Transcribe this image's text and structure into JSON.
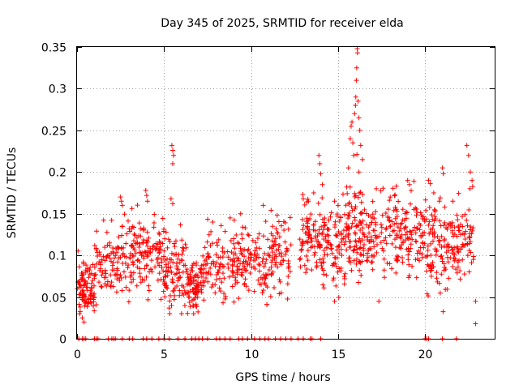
{
  "chart_data": {
    "type": "scatter",
    "title": "Day 345 of 2025, SRMTID for receiver elda",
    "xlabel": "GPS time / hours",
    "ylabel": "SRMTID / TECUs",
    "xlim": [
      0,
      24
    ],
    "ylim": [
      0,
      0.35
    ],
    "xticks": [
      0,
      5,
      10,
      15,
      20
    ],
    "xtick_labels": [
      "0",
      "5",
      "10",
      "15",
      "20"
    ],
    "yticks": [
      0,
      0.05,
      0.1,
      0.15,
      0.2,
      0.25,
      0.3,
      0.35
    ],
    "ytick_labels": [
      "0",
      "0.05",
      "0.1",
      "0.15",
      "0.2",
      "0.25",
      "0.3",
      "0.35"
    ],
    "grid": true,
    "marker": "+",
    "color": "#ff0000",
    "series": [
      {
        "name": "SRMTID",
        "segments": [
          {
            "start": 0.0,
            "end": 1.0,
            "base": 0.06,
            "spread": 0.015,
            "n": 90
          },
          {
            "start": 1.0,
            "end": 2.3,
            "base": 0.09,
            "spread": 0.02,
            "n": 70
          },
          {
            "start": 2.3,
            "end": 3.6,
            "base": 0.1,
            "spread": 0.022,
            "n": 80
          },
          {
            "start": 3.6,
            "end": 5.0,
            "base": 0.1,
            "spread": 0.025,
            "n": 90
          },
          {
            "start": 5.0,
            "end": 6.3,
            "base": 0.08,
            "spread": 0.022,
            "n": 90
          },
          {
            "start": 6.3,
            "end": 7.2,
            "base": 0.065,
            "spread": 0.015,
            "n": 80
          },
          {
            "start": 7.2,
            "end": 9.0,
            "base": 0.09,
            "spread": 0.02,
            "n": 90
          },
          {
            "start": 9.0,
            "end": 10.5,
            "base": 0.095,
            "spread": 0.022,
            "n": 90
          },
          {
            "start": 10.5,
            "end": 12.3,
            "base": 0.095,
            "spread": 0.025,
            "n": 100
          },
          {
            "start": 12.8,
            "end": 14.0,
            "base": 0.12,
            "spread": 0.022,
            "n": 80
          },
          {
            "start": 14.0,
            "end": 15.5,
            "base": 0.11,
            "spread": 0.025,
            "n": 100
          },
          {
            "start": 15.5,
            "end": 16.5,
            "base": 0.13,
            "spread": 0.03,
            "n": 90
          },
          {
            "start": 16.5,
            "end": 18.5,
            "base": 0.12,
            "spread": 0.025,
            "n": 110
          },
          {
            "start": 18.5,
            "end": 20.0,
            "base": 0.12,
            "spread": 0.022,
            "n": 90
          },
          {
            "start": 20.0,
            "end": 21.5,
            "base": 0.11,
            "spread": 0.03,
            "n": 100
          },
          {
            "start": 21.5,
            "end": 22.8,
            "base": 0.12,
            "spread": 0.025,
            "n": 80
          }
        ],
        "spikes": [
          [
            0.5,
            0.08
          ],
          [
            0.9,
            0.07
          ],
          [
            2.5,
            0.17
          ],
          [
            2.55,
            0.165
          ],
          [
            2.6,
            0.16
          ],
          [
            2.6,
            0.135
          ],
          [
            3.95,
            0.178
          ],
          [
            4.0,
            0.172
          ],
          [
            4.05,
            0.165
          ],
          [
            5.45,
            0.232
          ],
          [
            5.5,
            0.226
          ],
          [
            5.55,
            0.22
          ],
          [
            5.5,
            0.21
          ],
          [
            5.4,
            0.168
          ],
          [
            5.5,
            0.162
          ],
          [
            7.8,
            0.14
          ],
          [
            8.8,
            0.145
          ],
          [
            9.4,
            0.15
          ],
          [
            10.7,
            0.16
          ],
          [
            11.5,
            0.148
          ],
          [
            13.0,
            0.168
          ],
          [
            13.3,
            0.165
          ],
          [
            13.6,
            0.175
          ],
          [
            13.9,
            0.22
          ],
          [
            13.95,
            0.21
          ],
          [
            14.0,
            0.198
          ],
          [
            14.1,
            0.185
          ],
          [
            14.8,
            0.165
          ],
          [
            15.0,
            0.16
          ],
          [
            15.5,
            0.182
          ],
          [
            15.6,
            0.205
          ],
          [
            15.7,
            0.24
          ],
          [
            15.75,
            0.255
          ],
          [
            15.8,
            0.26
          ],
          [
            15.85,
            0.235
          ],
          [
            15.9,
            0.22
          ],
          [
            15.95,
            0.27
          ],
          [
            16.0,
            0.28
          ],
          [
            16.02,
            0.29
          ],
          [
            16.05,
            0.31
          ],
          [
            16.07,
            0.325
          ],
          [
            16.1,
            0.348
          ],
          [
            16.12,
            0.343
          ],
          [
            16.15,
            0.285
          ],
          [
            16.2,
            0.265
          ],
          [
            16.25,
            0.25
          ],
          [
            16.3,
            0.232
          ],
          [
            16.2,
            0.2
          ],
          [
            16.4,
            0.215
          ],
          [
            17.2,
            0.18
          ],
          [
            18.0,
            0.17
          ],
          [
            19.0,
            0.19
          ],
          [
            19.1,
            0.185
          ],
          [
            20.2,
            0.19
          ],
          [
            20.3,
            0.186
          ],
          [
            20.5,
            0.175
          ],
          [
            21.0,
            0.205
          ],
          [
            21.05,
            0.198
          ],
          [
            22.4,
            0.232
          ],
          [
            22.5,
            0.22
          ],
          [
            22.6,
            0.2
          ],
          [
            22.7,
            0.19
          ],
          [
            0.15,
            0.03
          ],
          [
            0.3,
            0.025
          ],
          [
            0.4,
            0.02
          ],
          [
            6.7,
            0.03
          ],
          [
            14.8,
            0.045
          ],
          [
            22.9,
            0.045
          ],
          [
            22.9,
            0.018
          ]
        ],
        "zeros": [
          0.1,
          0.3,
          0.4,
          0.5,
          1.0,
          1.1,
          1.2,
          1.8,
          2.0,
          2.1,
          2.2,
          2.6,
          3.0,
          3.2,
          3.8,
          4.0,
          4.3,
          4.7,
          5.0,
          5.3,
          5.8,
          6.2,
          6.6,
          6.8,
          7.0,
          7.2,
          7.5,
          8.0,
          8.2,
          8.5,
          8.8,
          9.3,
          9.5,
          9.8,
          10.2,
          10.5,
          10.8,
          11.0,
          11.4,
          11.7,
          12.0,
          12.3,
          12.7,
          13.0,
          13.4,
          13.5,
          14.0,
          20.0,
          20.1,
          20.2,
          21.0,
          21.8
        ]
      }
    ]
  }
}
